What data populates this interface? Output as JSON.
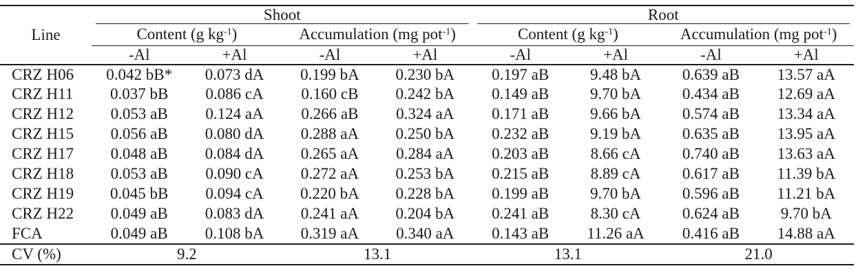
{
  "colors": {
    "text": "#1b1b1b",
    "background": "#ffffff",
    "rule": "#1b1b1b"
  },
  "table": {
    "line_header": "Line",
    "group_headers": {
      "shoot": "Shoot",
      "root": "Root"
    },
    "unit_headers": {
      "content": {
        "prefix": "Content (g kg",
        "sup": "-1",
        "suffix": ")"
      },
      "accumulation": {
        "prefix": "Accumulation (mg pot",
        "sup": "-1",
        "suffix": ")"
      }
    },
    "al_headers": {
      "minus": "-Al",
      "plus": "+Al"
    },
    "rows": [
      {
        "line": "CRZ H06",
        "values": [
          "0.042 bB*",
          "0.073 dA",
          "0.199 bA",
          "0.230 bA",
          "0.197 aB",
          "9.48 bA",
          "0.639 aB",
          "13.57 aA"
        ]
      },
      {
        "line": "CRZ H11",
        "values": [
          "0.037 bB",
          "0.086 cA",
          "0.160 cB",
          "0.242 bA",
          "0.149 aB",
          "9.70 bA",
          "0.434 aB",
          "12.69 aA"
        ]
      },
      {
        "line": "CRZ H12",
        "values": [
          "0.053 aB",
          "0.124 aA",
          "0.266 aB",
          "0.324 aA",
          "0.171 aB",
          "9.66 bA",
          "0.574 aB",
          "13.34 aA"
        ]
      },
      {
        "line": "CRZ H15",
        "values": [
          "0.056 aB",
          "0.080 dA",
          "0.288 aA",
          "0.250 bA",
          "0.232 aB",
          "9.19 bA",
          "0.635 aB",
          "13.95 aA"
        ]
      },
      {
        "line": "CRZ H17",
        "values": [
          "0.048 aB",
          "0.084 dA",
          "0.265 aA",
          "0.284 aA",
          "0.203 aB",
          "8.66 cA",
          "0.740 aB",
          "13.63 aA"
        ]
      },
      {
        "line": "CRZ H18",
        "values": [
          "0.053 aB",
          "0.090 cA",
          "0.272 aA",
          "0.253 bA",
          "0.215 aB",
          "8.89 cA",
          "0.617 aB",
          "11.39 bA"
        ]
      },
      {
        "line": "CRZ H19",
        "values": [
          "0.045 bB",
          "0.094 cA",
          "0.220 bA",
          "0.228 bA",
          "0.199 aB",
          "9.70 bA",
          "0.596 aB",
          "11.21 bA"
        ]
      },
      {
        "line": "CRZ H22",
        "values": [
          "0.049 aB",
          "0.083 dA",
          "0.241 aA",
          "0.204 bA",
          "0.241 aB",
          "8.30 cA",
          "0.624 aB",
          "9.70 bA"
        ]
      },
      {
        "line": "FCA",
        "values": [
          "0.049 aB",
          "0.108 bA",
          "0.319 aA",
          "0.340 aA",
          "0.143 aB",
          "11.26 aA",
          "0.416 aB",
          "14.88 aA"
        ]
      }
    ],
    "cv_row": {
      "label": "CV (%)",
      "values": [
        "9.2",
        "13.1",
        "13.1",
        "21.0"
      ]
    }
  }
}
